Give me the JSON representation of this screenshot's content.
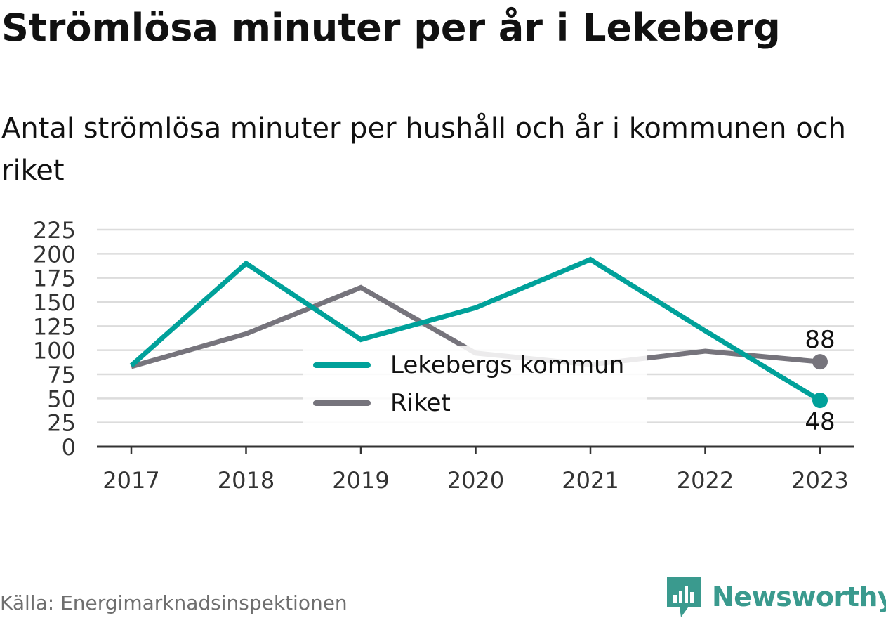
{
  "title": "Strömlösa minuter per år i Lekeberg",
  "subtitle": "Antal strömlösa minuter per hushåll och år i kommunen och riket",
  "source": "Källa: Energimarknadsinspektionen",
  "brand": {
    "name": "Newsworthy",
    "icon": "newsworthy-logo-icon",
    "color": "#3a9a8e"
  },
  "chart_data": {
    "type": "line",
    "categories": [
      "2017",
      "2018",
      "2019",
      "2020",
      "2021",
      "2022",
      "2023"
    ],
    "series": [
      {
        "name": "Lekebergs kommun",
        "color": "#00a19a",
        "values": [
          84,
          190,
          111,
          144,
          194,
          120,
          48
        ],
        "end_label": "48"
      },
      {
        "name": "Riket",
        "color": "#76747c",
        "values": [
          83,
          117,
          165,
          97,
          85,
          99,
          88
        ],
        "end_label": "88"
      }
    ],
    "ylim": [
      0,
      225
    ],
    "yticks": [
      0,
      25,
      50,
      75,
      100,
      125,
      150,
      175,
      200,
      225
    ],
    "grid": true,
    "legend": "center"
  }
}
